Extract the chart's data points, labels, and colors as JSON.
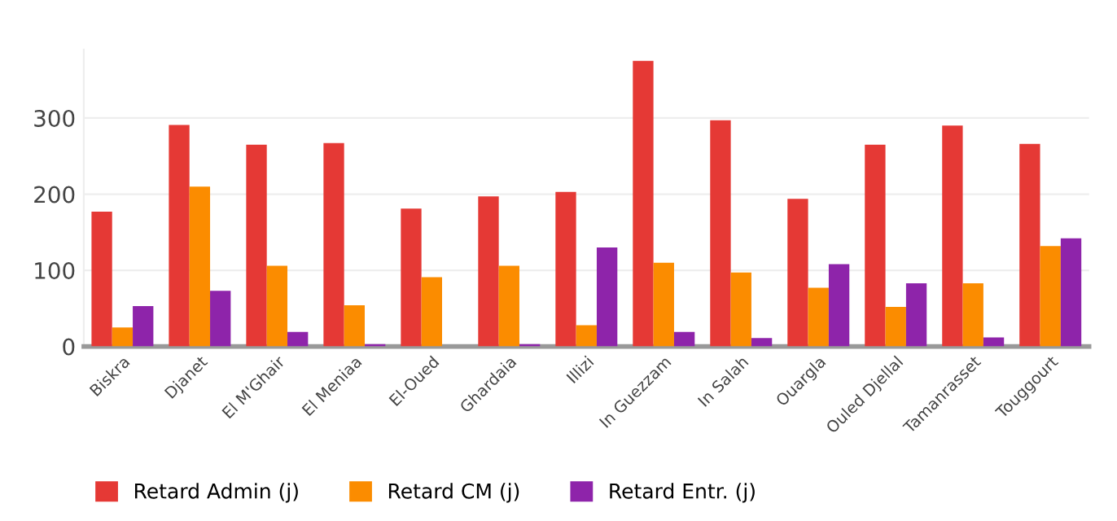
{
  "chart_data": {
    "type": "bar",
    "categories": [
      "Biskra",
      "Djanet",
      "El M'Ghair",
      "El Meniaa",
      "El-Oued",
      "Ghardaia",
      "Illizi",
      "In Guezzam",
      "In Salah",
      "Ouargla",
      "Ouled Djellal",
      "Tamanrasset",
      "Touggourt"
    ],
    "series": [
      {
        "name": "Retard Admin (j)",
        "color": "#e53935",
        "values": [
          177,
          291,
          265,
          267,
          181,
          197,
          203,
          375,
          297,
          194,
          265,
          290,
          266
        ]
      },
      {
        "name": "Retard CM (j)",
        "color": "#fb8c00",
        "values": [
          25,
          210,
          106,
          54,
          91,
          106,
          28,
          110,
          97,
          77,
          52,
          83,
          132
        ]
      },
      {
        "name": "Retard Entr. (j)",
        "color": "#8e24aa",
        "values": [
          53,
          73,
          19,
          3,
          0,
          3,
          130,
          19,
          11,
          108,
          83,
          12,
          142
        ]
      }
    ],
    "ylim": [
      0,
      390
    ],
    "yticks": [
      0,
      100,
      200,
      300
    ],
    "grid": "y",
    "legend": "bottom"
  }
}
